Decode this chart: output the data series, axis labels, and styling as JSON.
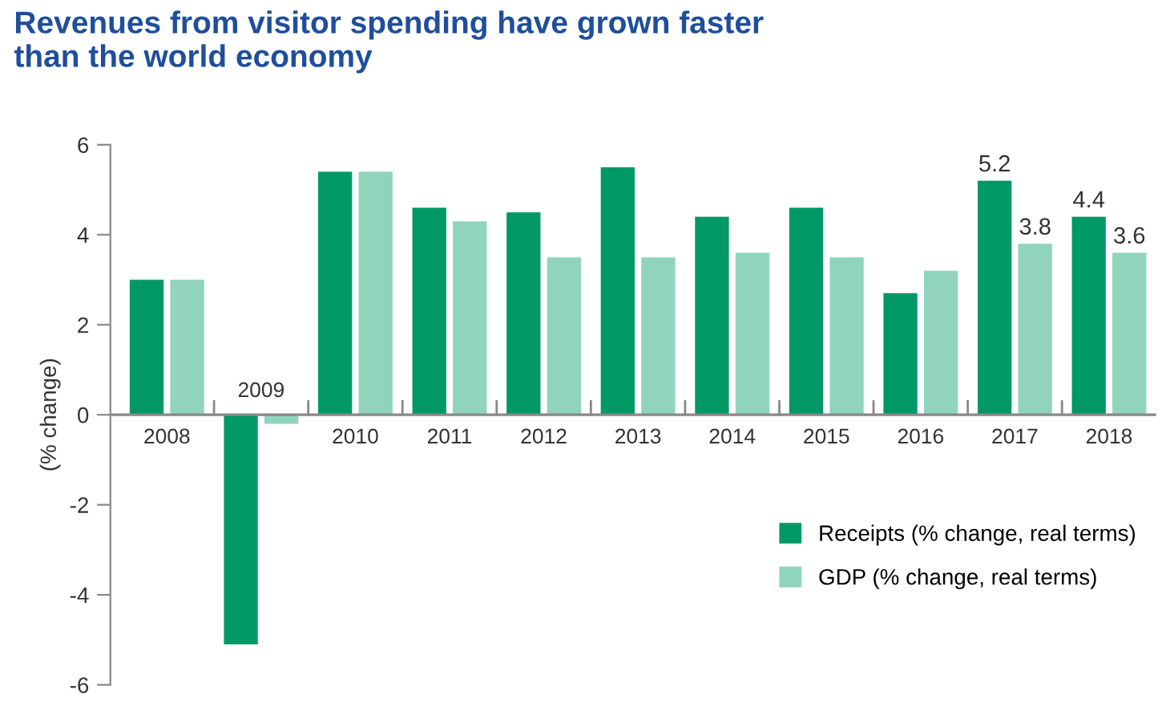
{
  "chart_data": {
    "type": "bar",
    "title": "Revenues from visitor spending have grown faster\nthan the world economy",
    "ylabel": "(% change)",
    "categories": [
      "2008",
      "2009",
      "2010",
      "2011",
      "2012",
      "2013",
      "2014",
      "2015",
      "2016",
      "2017",
      "2018"
    ],
    "series": [
      {
        "name": "Receipts (% change, real terms)",
        "color": "#009966",
        "values": [
          3.0,
          -5.1,
          5.4,
          4.6,
          4.5,
          5.5,
          4.4,
          4.6,
          2.7,
          5.2,
          4.4
        ],
        "value_labels": [
          null,
          null,
          null,
          null,
          null,
          null,
          null,
          null,
          null,
          "5.2",
          "4.4"
        ]
      },
      {
        "name": "GDP (% change, real terms)",
        "color": "#8fd4bb",
        "values": [
          3.0,
          -0.2,
          5.4,
          4.3,
          3.5,
          3.5,
          3.6,
          3.5,
          3.2,
          3.8,
          3.6
        ],
        "value_labels": [
          null,
          null,
          null,
          null,
          null,
          null,
          null,
          null,
          null,
          "3.8",
          "3.6"
        ]
      }
    ],
    "ylim": [
      -6,
      6
    ],
    "yticks": [
      {
        "value": -6,
        "label": "-6"
      },
      {
        "value": -4,
        "label": "-4"
      },
      {
        "value": -2,
        "label": "-2"
      },
      0,
      2,
      4,
      6
    ],
    "grid": false,
    "legend": "bottom right"
  }
}
